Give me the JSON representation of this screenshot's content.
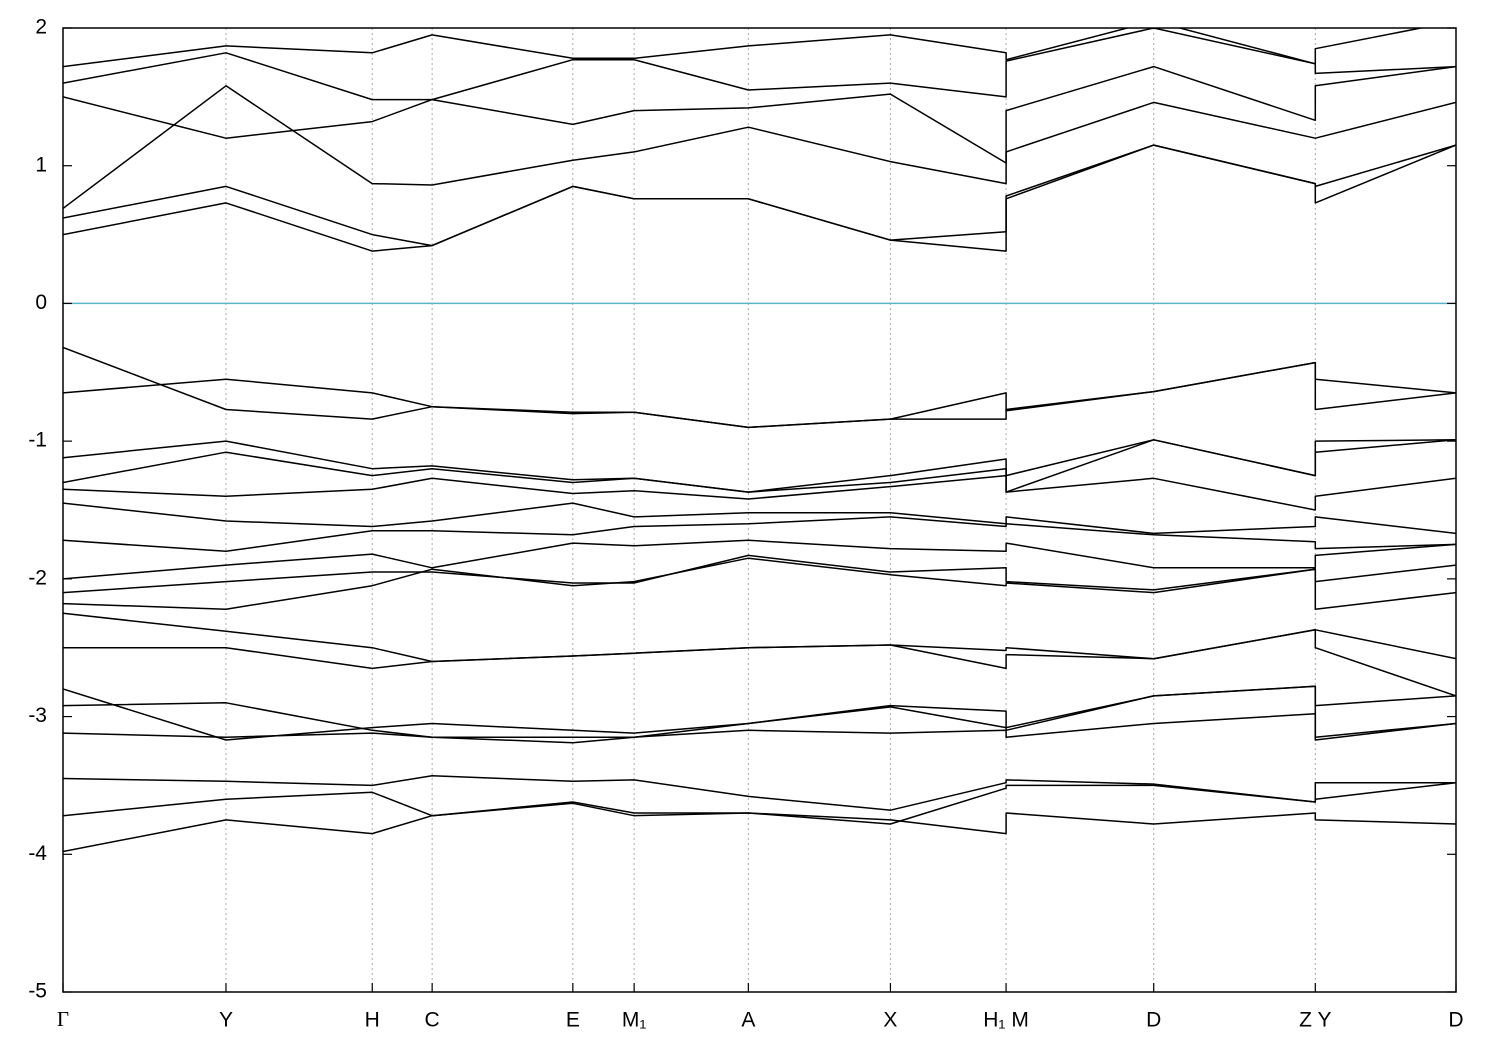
{
  "chart_data": {
    "type": "line",
    "x": [
      0,
      0.117,
      0.222,
      0.265,
      0.366,
      0.41,
      0.492,
      0.594,
      0.677,
      0.677,
      0.783,
      0.899,
      0.899,
      1
    ],
    "xlim": [
      0,
      1
    ],
    "xticks": [
      {
        "value": 0,
        "label": "Γ"
      },
      {
        "value": 0.117,
        "label": "Y"
      },
      {
        "value": 0.222,
        "label": "H"
      },
      {
        "value": 0.265,
        "label": "C"
      },
      {
        "value": 0.366,
        "label": "E"
      },
      {
        "value": 0.41,
        "label": "M₁"
      },
      {
        "value": 0.492,
        "label": "A"
      },
      {
        "value": 0.594,
        "label": "X"
      },
      {
        "value": 0.677,
        "label": "H₁ M"
      },
      {
        "value": 0.783,
        "label": "D"
      },
      {
        "value": 0.899,
        "label": "Z Y"
      },
      {
        "value": 1,
        "label": "D"
      }
    ],
    "ylim": [
      -5,
      2
    ],
    "yticks": [
      2,
      1,
      0,
      -1,
      -2,
      -3,
      -4,
      -5
    ],
    "grid": "x",
    "reference_line": {
      "value": 0,
      "color": "#5ab4c8"
    },
    "color": "#000000",
    "series": [
      {
        "values": [
          0.5,
          0.73,
          0.38,
          0.42,
          0.85,
          0.76,
          0.76,
          0.46,
          0.38,
          0.76,
          1.15,
          0.87,
          0.73,
          1.15
        ]
      },
      {
        "values": [
          0.62,
          0.85,
          0.5,
          0.42,
          0.85,
          0.76,
          0.76,
          0.46,
          0.52,
          0.78,
          1.15,
          0.87,
          0.85,
          1.15
        ]
      },
      {
        "values": [
          0.69,
          1.58,
          0.87,
          0.86,
          1.04,
          1.1,
          1.28,
          1.03,
          0.87,
          1.1,
          1.46,
          1.2,
          1.2,
          1.46
        ]
      },
      {
        "values": [
          1.5,
          1.2,
          1.32,
          1.48,
          1.3,
          1.4,
          1.42,
          1.52,
          1.02,
          1.4,
          1.72,
          1.33,
          1.58,
          1.72
        ]
      },
      {
        "values": [
          1.6,
          1.82,
          1.48,
          1.48,
          1.77,
          1.77,
          1.55,
          1.6,
          1.5,
          1.76,
          2.0,
          1.74,
          1.67,
          1.72
        ]
      },
      {
        "values": [
          1.72,
          1.87,
          1.82,
          1.95,
          1.78,
          1.78,
          1.87,
          1.95,
          1.82,
          1.77,
          2.05,
          1.74,
          1.85,
          2.05
        ]
      },
      {
        "values": [
          -0.32,
          -0.77,
          -0.84,
          -0.75,
          -0.8,
          -0.79,
          -0.9,
          -0.84,
          -0.65,
          -0.78,
          -0.64,
          -0.43,
          -0.55,
          -0.65
        ]
      },
      {
        "values": [
          -0.65,
          -0.55,
          -0.65,
          -0.75,
          -0.79,
          -0.79,
          -0.9,
          -0.84,
          -0.84,
          -0.77,
          -0.64,
          -0.43,
          -0.77,
          -0.65
        ]
      },
      {
        "values": [
          -1.12,
          -1.0,
          -1.2,
          -1.18,
          -1.28,
          -1.27,
          -1.37,
          -1.25,
          -1.13,
          -1.25,
          -0.99,
          -1.25,
          -1.0,
          -0.99
        ]
      },
      {
        "values": [
          -1.3,
          -1.08,
          -1.25,
          -1.2,
          -1.3,
          -1.27,
          -1.37,
          -1.3,
          -1.2,
          -1.37,
          -0.99,
          -1.25,
          -1.08,
          -0.99
        ]
      },
      {
        "values": [
          -1.35,
          -1.4,
          -1.35,
          -1.27,
          -1.38,
          -1.36,
          -1.42,
          -1.33,
          -1.25,
          -1.37,
          -1.27,
          -1.5,
          -1.4,
          -1.27
        ]
      },
      {
        "values": [
          -1.45,
          -1.58,
          -1.62,
          -1.58,
          -1.45,
          -1.55,
          -1.52,
          -1.52,
          -1.6,
          -1.55,
          -1.67,
          -1.62,
          -1.55,
          -1.67
        ]
      },
      {
        "values": [
          -1.72,
          -1.8,
          -1.65,
          -1.65,
          -1.68,
          -1.62,
          -1.6,
          -1.55,
          -1.62,
          -1.6,
          -1.68,
          -1.73,
          -1.78,
          -1.75
        ]
      },
      {
        "values": [
          -2.0,
          -1.9,
          -1.82,
          -1.92,
          -1.74,
          -1.76,
          -1.72,
          -1.78,
          -1.8,
          -1.74,
          -1.92,
          -1.92,
          -1.83,
          -1.75
        ]
      },
      {
        "values": [
          -2.1,
          -2.02,
          -1.95,
          -1.95,
          -2.03,
          -2.03,
          -1.83,
          -1.95,
          -1.92,
          -2.02,
          -2.08,
          -1.93,
          -2.02,
          -1.9
        ]
      },
      {
        "values": [
          -2.18,
          -2.22,
          -2.05,
          -1.93,
          -2.05,
          -2.02,
          -1.85,
          -1.97,
          -2.05,
          -2.03,
          -2.1,
          -1.93,
          -2.22,
          -2.1
        ]
      },
      {
        "values": [
          -2.25,
          -2.38,
          -2.5,
          -2.6,
          -2.56,
          -2.54,
          -2.5,
          -2.48,
          -2.52,
          -2.5,
          -2.58,
          -2.37,
          -2.37,
          -2.58
        ]
      },
      {
        "values": [
          -2.5,
          -2.5,
          -2.65,
          -2.6,
          -2.56,
          -2.54,
          -2.5,
          -2.48,
          -2.65,
          -2.55,
          -2.58,
          -2.37,
          -2.5,
          -2.85
        ]
      },
      {
        "values": [
          -2.8,
          -3.17,
          -3.08,
          -3.05,
          -3.1,
          -3.12,
          -3.05,
          -2.92,
          -2.96,
          -3.08,
          -2.85,
          -2.78,
          -2.92,
          -2.85
        ]
      },
      {
        "values": [
          -2.92,
          -2.9,
          -3.1,
          -3.15,
          -3.15,
          -3.15,
          -3.05,
          -2.93,
          -3.08,
          -3.1,
          -2.85,
          -2.78,
          -3.15,
          -3.05
        ]
      },
      {
        "values": [
          -3.12,
          -3.15,
          -3.12,
          -3.15,
          -3.19,
          -3.15,
          -3.1,
          -3.12,
          -3.1,
          -3.15,
          -3.05,
          -2.98,
          -3.17,
          -3.05
        ]
      },
      {
        "values": [
          -3.45,
          -3.47,
          -3.5,
          -3.43,
          -3.47,
          -3.46,
          -3.58,
          -3.68,
          -3.48,
          -3.46,
          -3.49,
          -3.62,
          -3.48,
          -3.48
        ]
      },
      {
        "values": [
          -3.72,
          -3.6,
          -3.55,
          -3.72,
          -3.62,
          -3.7,
          -3.7,
          -3.78,
          -3.52,
          -3.5,
          -3.5,
          -3.62,
          -3.6,
          -3.48
        ]
      },
      {
        "values": [
          -3.98,
          -3.75,
          -3.85,
          -3.72,
          -3.63,
          -3.72,
          -3.7,
          -3.75,
          -3.85,
          -3.7,
          -3.78,
          -3.7,
          -3.75,
          -3.78
        ]
      }
    ]
  }
}
